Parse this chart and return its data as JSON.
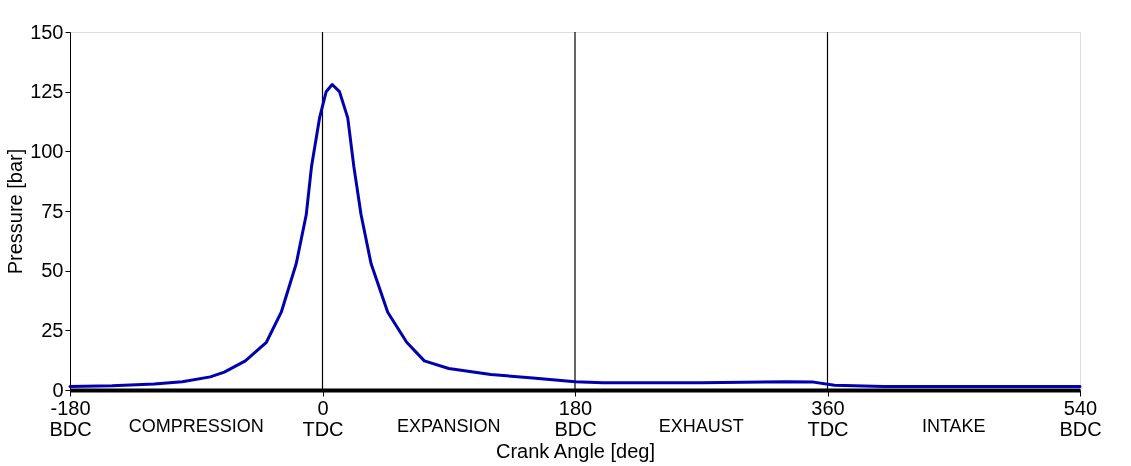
{
  "chart_data": {
    "type": "line",
    "xlabel": "Crank Angle  [deg]",
    "ylabel": "Pressure  [bar]",
    "x": [
      -180,
      -150,
      -120,
      -100,
      -80,
      -70,
      -55,
      -40,
      -29.4,
      -18.7,
      -11.6,
      -7.8,
      -2.1,
      2.6,
      6.9,
      12.1,
      18,
      22.3,
      27.5,
      34.6,
      46.5,
      60,
      72.6,
      90,
      120,
      150,
      180,
      200,
      270,
      330,
      350,
      365,
      400,
      450,
      540
    ],
    "series": [
      {
        "color": "#0000b0",
        "values": [
          1.5,
          1.8,
          2.5,
          3.5,
          5.5,
          7.5,
          12.2,
          20,
          32.6,
          53,
          73.4,
          93.8,
          114,
          125,
          128,
          125,
          114,
          93.8,
          73.4,
          53,
          32.6,
          20,
          12.2,
          9,
          6.5,
          5,
          3.5,
          3,
          3,
          3.5,
          3.3,
          2,
          1.5,
          1.5,
          1.5
        ]
      }
    ],
    "xlim": [
      -180,
      540
    ],
    "ylim": [
      0,
      150
    ],
    "xticks": [
      {
        "value": -180,
        "label": "-180\nBDC"
      },
      {
        "value": 0,
        "label": "0\nTDC"
      },
      {
        "value": 180,
        "label": "180\nBDC"
      },
      {
        "value": 360,
        "label": "360\nTDC"
      },
      {
        "value": 540,
        "label": "540\nBDC"
      }
    ],
    "yticks": [
      0,
      25,
      50,
      75,
      100,
      125,
      150
    ],
    "ref_lines": [
      {
        "axis": "x",
        "value": 0,
        "color": "#000000"
      },
      {
        "axis": "x",
        "value": 180,
        "color": "#000000"
      },
      {
        "axis": "x",
        "value": 360,
        "color": "#000000"
      }
    ],
    "annotations": [
      "COMPRESSION",
      "EXPANSION",
      "EXHAUST",
      "INTAKE"
    ],
    "grid": false,
    "line_style": "solid",
    "marker": "none"
  }
}
